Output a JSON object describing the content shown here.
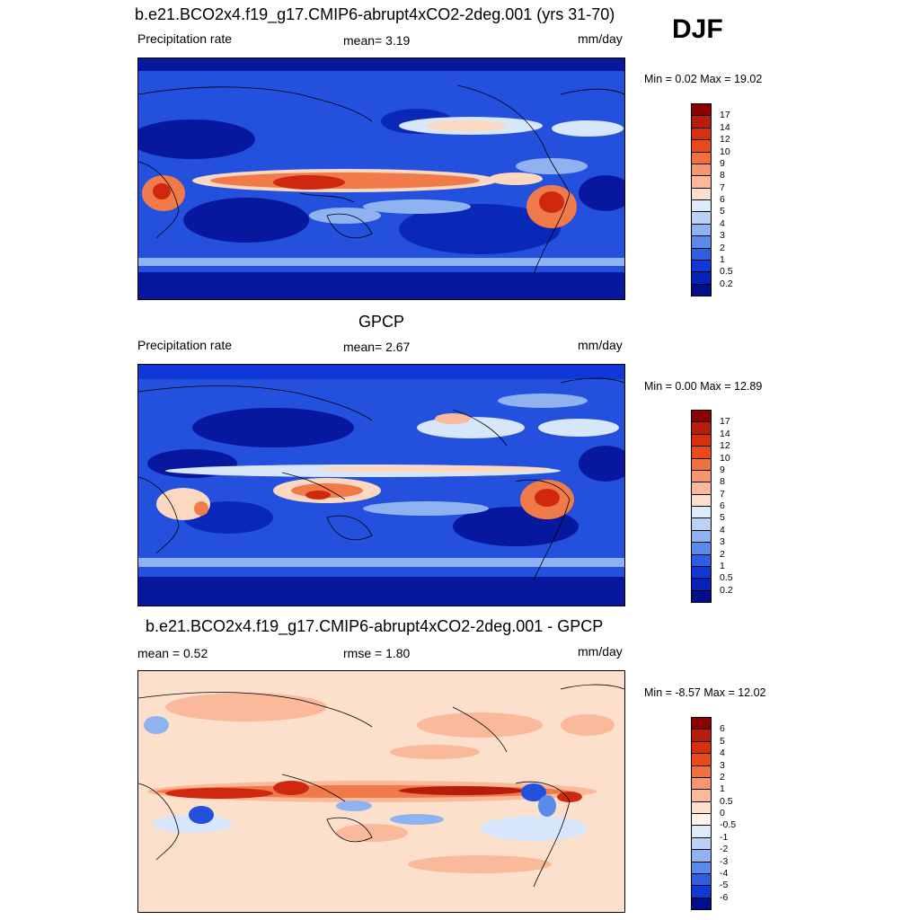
{
  "season": "DJF",
  "units": "mm/day",
  "panels": [
    {
      "title": "b.e21.BCO2x4.f19_g17.CMIP6-abrupt4xCO2-2deg.001 (yrs 31-70)",
      "left_label": "Precipitation rate",
      "mid_label": "mean=   3.19",
      "right_label": "mm/day",
      "minmax": "Min =   0.02 Max =  19.02",
      "levels": [
        "17",
        "14",
        "12",
        "10",
        "9",
        "8",
        "7",
        "6",
        "5",
        "4",
        "3",
        "2",
        "1",
        "0.5",
        "0.2"
      ],
      "colors": [
        "#8b0000",
        "#b71c0c",
        "#d7300f",
        "#ea4a1a",
        "#f0703e",
        "#f59670",
        "#f9b99a",
        "#fde0cb",
        "#ddeafa",
        "#b9d2f6",
        "#8fb3f0",
        "#5a8aea",
        "#2e5fe3",
        "#1038d6",
        "#0720b7",
        "#020f8a"
      ]
    },
    {
      "title": "GPCP",
      "left_label": "Precipitation rate",
      "mid_label": "mean=   2.67",
      "right_label": "mm/day",
      "minmax": "Min =   0.00 Max =  12.89",
      "levels": [
        "17",
        "14",
        "12",
        "10",
        "9",
        "8",
        "7",
        "6",
        "5",
        "4",
        "3",
        "2",
        "1",
        "0.5",
        "0.2"
      ],
      "colors": [
        "#8b0000",
        "#b71c0c",
        "#d7300f",
        "#ea4a1a",
        "#f0703e",
        "#f59670",
        "#f9b99a",
        "#fde0cb",
        "#ddeafa",
        "#b9d2f6",
        "#8fb3f0",
        "#5a8aea",
        "#2e5fe3",
        "#1038d6",
        "#0720b7",
        "#020f8a"
      ]
    },
    {
      "title": "b.e21.BCO2x4.f19_g17.CMIP6-abrupt4xCO2-2deg.001 - GPCP",
      "left_label": "mean =   0.52",
      "mid_label": "rmse =   1.80",
      "right_label": "mm/day",
      "minmax": "Min =  -8.57 Max =  12.02",
      "levels": [
        "6",
        "5",
        "4",
        "3",
        "2",
        "1",
        "0.5",
        "0",
        "-0.5",
        "-1",
        "-2",
        "-3",
        "-4",
        "-5",
        "-6"
      ],
      "colors": [
        "#8b0000",
        "#b71c0c",
        "#d7300f",
        "#ea4a1a",
        "#f0703e",
        "#f59670",
        "#f9b99a",
        "#fde0cb",
        "#fff3ea",
        "#ddeafa",
        "#b9d2f6",
        "#8fb3f0",
        "#5a8aea",
        "#2e5fe3",
        "#1038d6",
        "#020f8a"
      ]
    }
  ],
  "field_colors": {
    "deep_blue": "#07189e",
    "blue": "#2450de",
    "light_blue": "#8fb3f0",
    "pale_blue": "#d8e6fb",
    "peach": "#fdd8c0",
    "orange": "#f07a4a",
    "red": "#d0280e",
    "dark_red": "#8b0000",
    "coast": "#000000"
  }
}
